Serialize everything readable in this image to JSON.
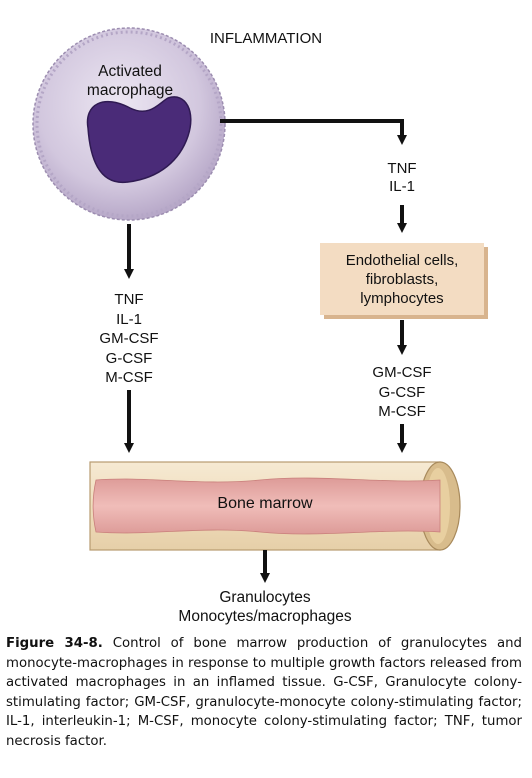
{
  "diagram": {
    "title": "INFLAMMATION",
    "macrophage_label": [
      "Activated",
      "macrophage"
    ],
    "right_path_factors": [
      "TNF",
      "IL-1"
    ],
    "endothelial_box": [
      "Endothelial cells,",
      "fibroblasts,",
      "lymphocytes"
    ],
    "left_path_factors": [
      "TNF",
      "IL-1",
      "GM-CSF",
      "G-CSF",
      "M-CSF"
    ],
    "right_lower_factors": [
      "GM-CSF",
      "G-CSF",
      "M-CSF"
    ],
    "bone_marrow_label": "Bone marrow",
    "output_cells": [
      "Granulocytes",
      "Monocytes/macrophages"
    ]
  },
  "caption": {
    "figure_label": "Figure 34-8.",
    "text": "Control of bone marrow production of granulocytes and monocyte-macrophages in response to multiple growth factors released from activated macrophages in an inflamed tissue. G-CSF, Granulocyte colony-stimulating factor; GM-CSF, granulocyte-monocyte colony-stimulating factor; IL-1, interleukin-1; M-CSF, monocyte colony-stimulating factor; TNF, tumor necrosis factor."
  },
  "colors": {
    "macrophage_body": "#c9bdd6",
    "nucleus": "#4a2b78",
    "box_fill": "#f3dcc2",
    "bone_outer": "#f1e1c4",
    "marrow": "#e7a9a6",
    "arrow": "#111111"
  }
}
